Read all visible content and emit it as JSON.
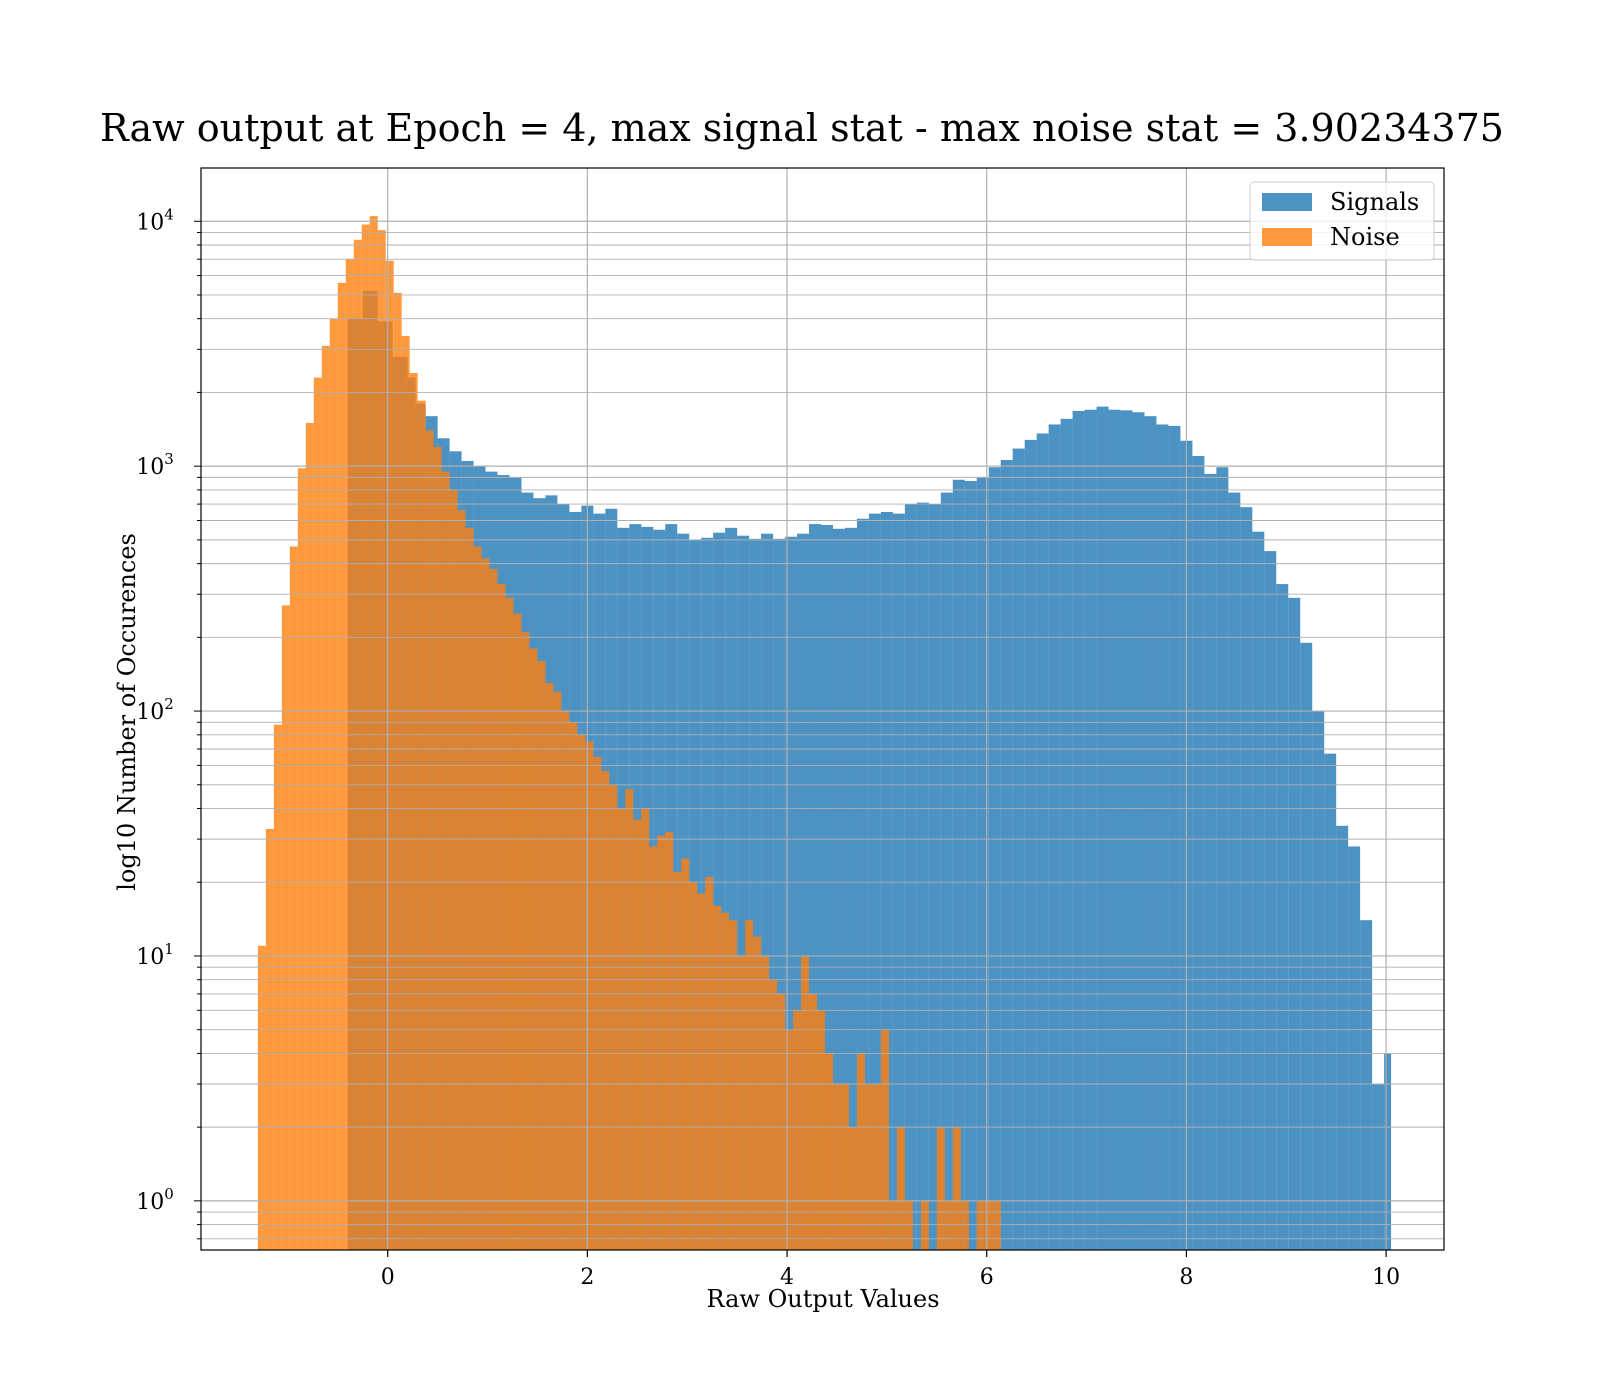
{
  "chart_data": {
    "type": "bar",
    "title": "Raw output at Epoch = 4, max signal stat - max noise stat = 3.90234375",
    "xlabel": "Raw Output Values",
    "ylabel": "log10 Number of Occurences",
    "x_ticks": [
      0,
      2,
      4,
      6,
      8,
      10
    ],
    "y_scale": "log",
    "xlim": [
      -1.87,
      10.58
    ],
    "ylim": [
      0.63,
      16500
    ],
    "grid": true,
    "legend": "top-right",
    "colors": {
      "signals": "#1f77b4",
      "noise": "#ff7f0e"
    },
    "series": [
      {
        "name": "Signals",
        "color": "#1f77b4",
        "bins": [
          [
            -0.4,
            -0.25,
            4000
          ],
          [
            -0.25,
            -0.1,
            5200
          ],
          [
            -0.1,
            0.05,
            3900
          ],
          [
            0.05,
            0.2,
            2800
          ],
          [
            0.2,
            0.28,
            2300
          ],
          [
            0.28,
            0.38,
            1800
          ],
          [
            0.38,
            0.5,
            1600
          ],
          [
            0.5,
            0.62,
            1300
          ],
          [
            0.62,
            0.74,
            1150
          ],
          [
            0.74,
            0.86,
            1050
          ],
          [
            0.86,
            0.98,
            1000
          ],
          [
            0.98,
            1.1,
            950
          ],
          [
            1.1,
            1.22,
            920
          ],
          [
            1.22,
            1.34,
            900
          ],
          [
            1.34,
            1.46,
            780
          ],
          [
            1.46,
            1.58,
            740
          ],
          [
            1.58,
            1.7,
            760
          ],
          [
            1.7,
            1.82,
            700
          ],
          [
            1.82,
            1.94,
            650
          ],
          [
            1.94,
            2.06,
            690
          ],
          [
            2.06,
            2.18,
            640
          ],
          [
            2.18,
            2.3,
            670
          ],
          [
            2.3,
            2.42,
            560
          ],
          [
            2.42,
            2.54,
            580
          ],
          [
            2.54,
            2.66,
            565
          ],
          [
            2.66,
            2.78,
            550
          ],
          [
            2.78,
            2.9,
            580
          ],
          [
            2.9,
            3.02,
            530
          ],
          [
            3.02,
            3.14,
            500
          ],
          [
            3.14,
            3.26,
            510
          ],
          [
            3.26,
            3.38,
            535
          ],
          [
            3.38,
            3.5,
            560
          ],
          [
            3.5,
            3.62,
            520
          ],
          [
            3.62,
            3.74,
            505
          ],
          [
            3.74,
            3.86,
            530
          ],
          [
            3.86,
            3.98,
            505
          ],
          [
            3.98,
            4.1,
            515
          ],
          [
            4.1,
            4.22,
            530
          ],
          [
            4.22,
            4.34,
            580
          ],
          [
            4.34,
            4.46,
            575
          ],
          [
            4.46,
            4.58,
            555
          ],
          [
            4.58,
            4.7,
            560
          ],
          [
            4.7,
            4.82,
            610
          ],
          [
            4.82,
            4.94,
            640
          ],
          [
            4.94,
            5.06,
            650
          ],
          [
            5.06,
            5.18,
            640
          ],
          [
            5.18,
            5.3,
            700
          ],
          [
            5.3,
            5.42,
            710
          ],
          [
            5.42,
            5.54,
            700
          ],
          [
            5.54,
            5.66,
            780
          ],
          [
            5.66,
            5.78,
            880
          ],
          [
            5.78,
            5.9,
            870
          ],
          [
            5.9,
            6.02,
            900
          ],
          [
            6.02,
            6.14,
            990
          ],
          [
            6.14,
            6.26,
            1060
          ],
          [
            6.26,
            6.38,
            1180
          ],
          [
            6.38,
            6.5,
            1280
          ],
          [
            6.5,
            6.62,
            1360
          ],
          [
            6.62,
            6.74,
            1480
          ],
          [
            6.74,
            6.86,
            1560
          ],
          [
            6.86,
            6.98,
            1680
          ],
          [
            6.98,
            7.1,
            1700
          ],
          [
            7.1,
            7.22,
            1750
          ],
          [
            7.22,
            7.34,
            1700
          ],
          [
            7.34,
            7.46,
            1690
          ],
          [
            7.46,
            7.58,
            1660
          ],
          [
            7.58,
            7.7,
            1600
          ],
          [
            7.7,
            7.82,
            1480
          ],
          [
            7.82,
            7.94,
            1460
          ],
          [
            7.94,
            8.06,
            1270
          ],
          [
            8.06,
            8.18,
            1100
          ],
          [
            8.18,
            8.3,
            930
          ],
          [
            8.3,
            8.42,
            990
          ],
          [
            8.42,
            8.54,
            780
          ],
          [
            8.54,
            8.66,
            680
          ],
          [
            8.66,
            8.78,
            540
          ],
          [
            8.78,
            8.9,
            450
          ],
          [
            8.9,
            9.02,
            330
          ],
          [
            9.02,
            9.14,
            290
          ],
          [
            9.14,
            9.26,
            190
          ],
          [
            9.26,
            9.38,
            100
          ],
          [
            9.38,
            9.5,
            67
          ],
          [
            9.5,
            9.62,
            34
          ],
          [
            9.62,
            9.74,
            28
          ],
          [
            9.74,
            9.86,
            14
          ],
          [
            9.86,
            9.98,
            3
          ],
          [
            9.98,
            10.05,
            4
          ]
        ]
      },
      {
        "name": "Noise",
        "color": "#ff7f0e",
        "bins": [
          [
            -1.3,
            -1.22,
            11
          ],
          [
            -1.22,
            -1.14,
            33
          ],
          [
            -1.14,
            -1.06,
            88
          ],
          [
            -1.06,
            -0.98,
            270
          ],
          [
            -0.98,
            -0.9,
            470
          ],
          [
            -0.9,
            -0.82,
            980
          ],
          [
            -0.82,
            -0.74,
            1500
          ],
          [
            -0.74,
            -0.66,
            2300
          ],
          [
            -0.66,
            -0.58,
            3100
          ],
          [
            -0.58,
            -0.5,
            4000
          ],
          [
            -0.5,
            -0.42,
            5600
          ],
          [
            -0.42,
            -0.34,
            7000
          ],
          [
            -0.34,
            -0.26,
            8400
          ],
          [
            -0.26,
            -0.18,
            9700
          ],
          [
            -0.18,
            -0.1,
            10500
          ],
          [
            -0.1,
            -0.02,
            9200
          ],
          [
            -0.02,
            0.06,
            6900
          ],
          [
            0.06,
            0.14,
            5100
          ],
          [
            0.14,
            0.22,
            3400
          ],
          [
            0.22,
            0.3,
            2400
          ],
          [
            0.3,
            0.38,
            1850
          ],
          [
            0.38,
            0.46,
            1400
          ],
          [
            0.46,
            0.54,
            1200
          ],
          [
            0.54,
            0.62,
            950
          ],
          [
            0.62,
            0.7,
            800
          ],
          [
            0.7,
            0.78,
            660
          ],
          [
            0.78,
            0.86,
            560
          ],
          [
            0.86,
            0.94,
            470
          ],
          [
            0.94,
            1.02,
            420
          ],
          [
            1.02,
            1.1,
            380
          ],
          [
            1.1,
            1.18,
            330
          ],
          [
            1.18,
            1.26,
            290
          ],
          [
            1.26,
            1.34,
            250
          ],
          [
            1.34,
            1.42,
            210
          ],
          [
            1.42,
            1.5,
            180
          ],
          [
            1.5,
            1.58,
            160
          ],
          [
            1.58,
            1.66,
            130
          ],
          [
            1.66,
            1.74,
            120
          ],
          [
            1.74,
            1.82,
            100
          ],
          [
            1.82,
            1.9,
            90
          ],
          [
            1.9,
            1.98,
            80
          ],
          [
            1.98,
            2.06,
            75
          ],
          [
            2.06,
            2.14,
            65
          ],
          [
            2.14,
            2.22,
            57
          ],
          [
            2.22,
            2.3,
            50
          ],
          [
            2.3,
            2.38,
            40
          ],
          [
            2.38,
            2.46,
            48
          ],
          [
            2.46,
            2.54,
            36
          ],
          [
            2.54,
            2.62,
            40
          ],
          [
            2.62,
            2.7,
            28
          ],
          [
            2.7,
            2.78,
            31
          ],
          [
            2.78,
            2.86,
            32
          ],
          [
            2.86,
            2.94,
            22
          ],
          [
            2.94,
            3.02,
            25
          ],
          [
            3.02,
            3.1,
            20
          ],
          [
            3.1,
            3.18,
            18
          ],
          [
            3.18,
            3.26,
            21
          ],
          [
            3.26,
            3.34,
            16
          ],
          [
            3.34,
            3.42,
            15
          ],
          [
            3.42,
            3.5,
            14
          ],
          [
            3.5,
            3.58,
            10
          ],
          [
            3.58,
            3.66,
            14
          ],
          [
            3.66,
            3.74,
            12
          ],
          [
            3.74,
            3.82,
            10
          ],
          [
            3.82,
            3.9,
            8
          ],
          [
            3.9,
            3.98,
            7
          ],
          [
            3.98,
            4.06,
            5
          ],
          [
            4.06,
            4.14,
            6
          ],
          [
            4.14,
            4.22,
            10
          ],
          [
            4.22,
            4.3,
            7
          ],
          [
            4.3,
            4.38,
            6
          ],
          [
            4.38,
            4.46,
            4
          ],
          [
            4.46,
            4.54,
            3
          ],
          [
            4.54,
            4.62,
            3
          ],
          [
            4.62,
            4.7,
            2
          ],
          [
            4.7,
            4.78,
            4
          ],
          [
            4.78,
            4.86,
            3
          ],
          [
            4.86,
            4.94,
            3
          ],
          [
            4.94,
            5.02,
            5
          ],
          [
            5.02,
            5.1,
            1
          ],
          [
            5.1,
            5.18,
            2
          ],
          [
            5.18,
            5.26,
            1
          ],
          [
            5.26,
            5.34,
            0
          ],
          [
            5.34,
            5.42,
            1
          ],
          [
            5.42,
            5.5,
            0
          ],
          [
            5.5,
            5.58,
            2
          ],
          [
            5.58,
            5.66,
            1
          ],
          [
            5.66,
            5.74,
            2
          ],
          [
            5.74,
            5.82,
            1
          ],
          [
            5.82,
            5.9,
            0
          ],
          [
            5.9,
            5.98,
            1
          ],
          [
            5.98,
            6.06,
            1
          ],
          [
            6.06,
            6.14,
            1
          ]
        ]
      }
    ]
  }
}
